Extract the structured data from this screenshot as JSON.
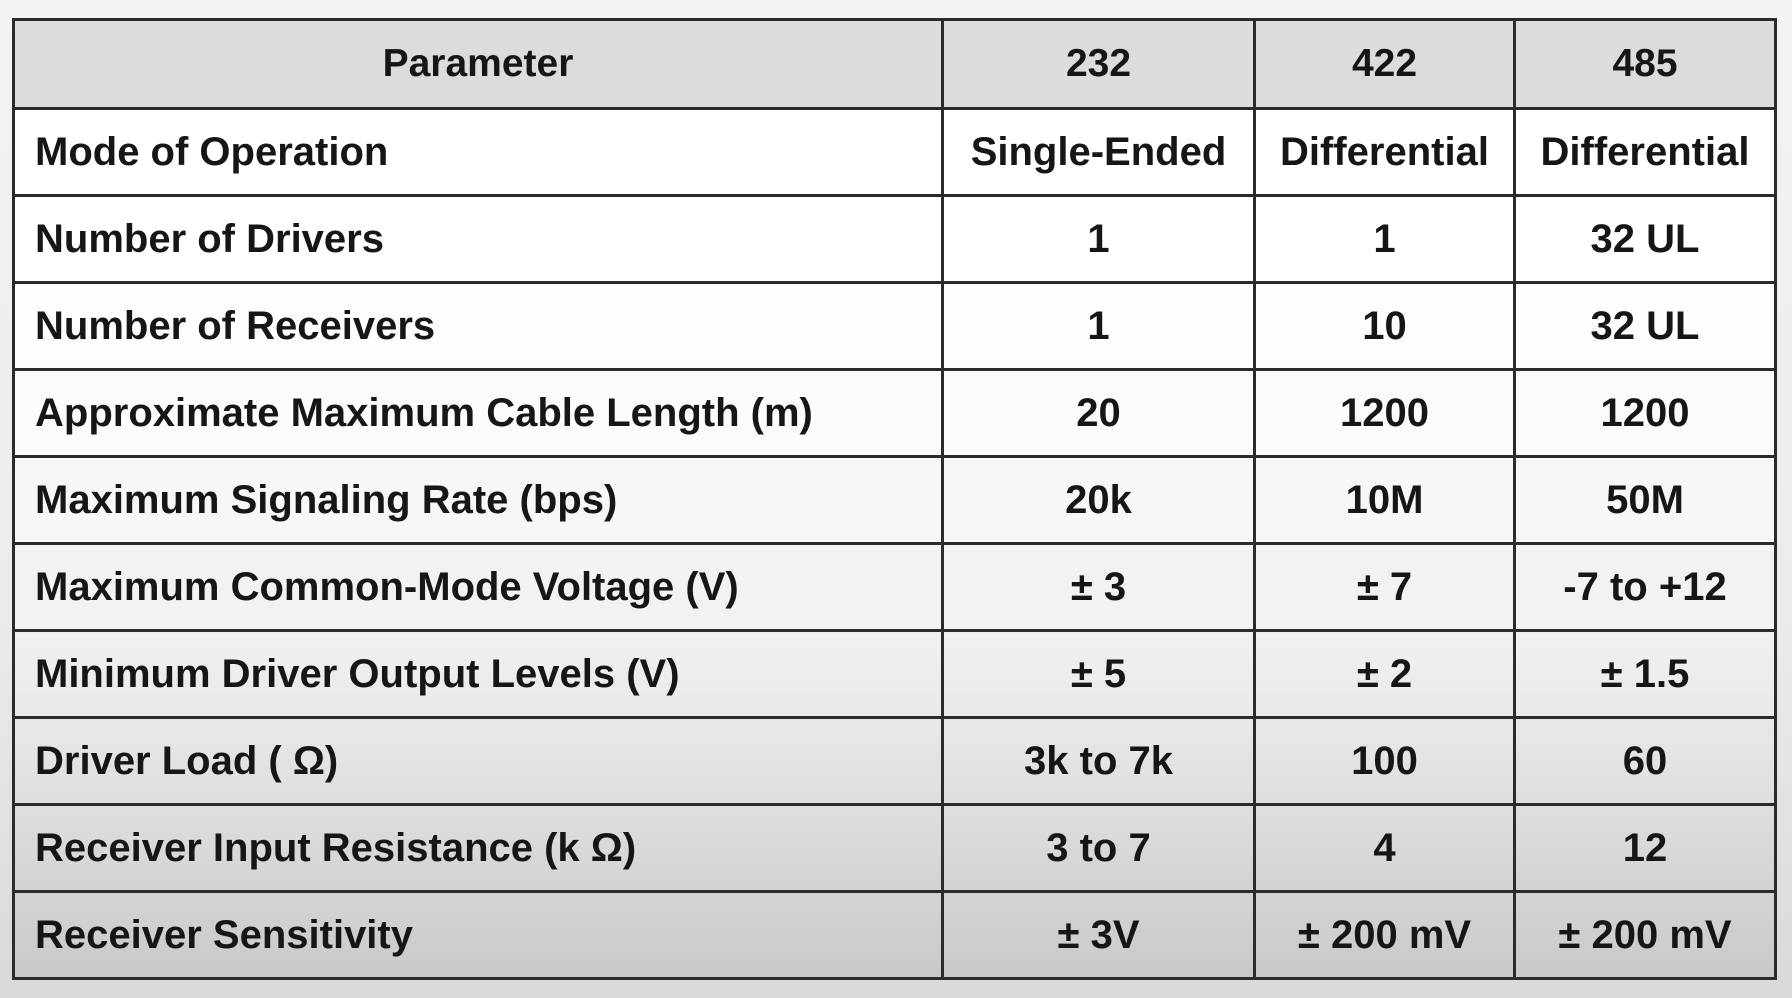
{
  "table": {
    "headers": [
      "Parameter",
      "232",
      "422",
      "485"
    ],
    "rows": [
      [
        "Mode of Operation",
        "Single-Ended",
        "Differential",
        "Differential"
      ],
      [
        "Number of Drivers",
        "1",
        "1",
        "32 UL"
      ],
      [
        "Number of Receivers",
        "1",
        "10",
        "32 UL"
      ],
      [
        "Approximate Maximum Cable Length (m)",
        "20",
        "1200",
        "1200"
      ],
      [
        "Maximum Signaling Rate (bps)",
        "20k",
        "10M",
        "50M"
      ],
      [
        "Maximum Common-Mode Voltage (V)",
        "± 3",
        "± 7",
        "-7 to +12"
      ],
      [
        "Minimum Driver Output Levels (V)",
        "± 5",
        "± 2",
        "± 1.5"
      ],
      [
        "Driver Load ( Ω)",
        "3k to 7k",
        "100",
        "60"
      ],
      [
        "Receiver Input Resistance (k Ω)",
        "3 to 7",
        "4",
        "12"
      ],
      [
        "Receiver Sensitivity",
        "± 3V",
        "± 200 mV",
        "± 200 mV"
      ]
    ]
  }
}
